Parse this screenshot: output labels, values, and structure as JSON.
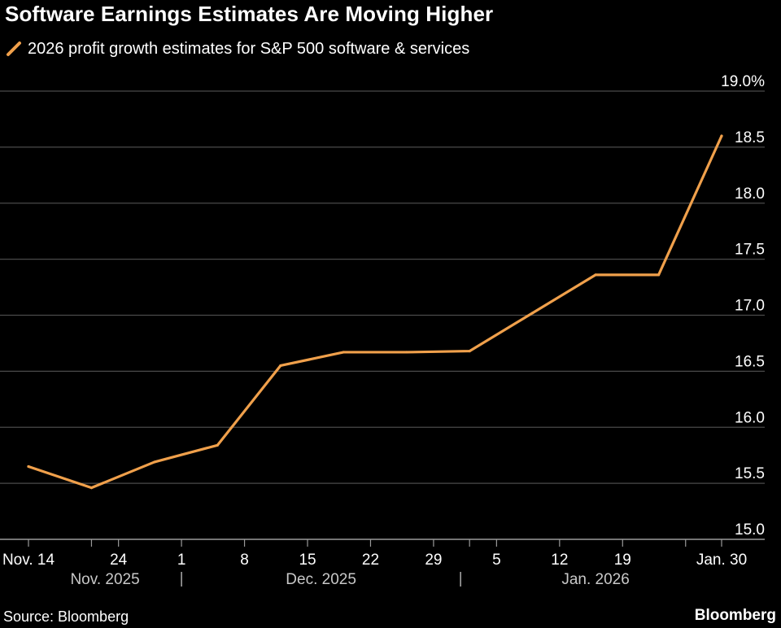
{
  "title": "Software Earnings Estimates Are Moving Higher",
  "source": "Source: Bloomberg",
  "brand": "Bloomberg",
  "colors": {
    "background": "#000000",
    "line": "#f0a04b",
    "grid": "#4a4a4a",
    "text": "#ffffff",
    "muted_text": "#c8c8c8"
  },
  "chart_data": {
    "type": "line",
    "title": "Software Earnings Estimates Are Moving Higher",
    "xlabel": "",
    "ylabel": "",
    "ylim": [
      15.0,
      19.0
    ],
    "y_ticks": [
      {
        "value": 15.0,
        "label": "15.0"
      },
      {
        "value": 15.5,
        "label": "15.5"
      },
      {
        "value": 16.0,
        "label": "16.0"
      },
      {
        "value": 16.5,
        "label": "16.5"
      },
      {
        "value": 17.0,
        "label": "17.0"
      },
      {
        "value": 17.5,
        "label": "17.5"
      },
      {
        "value": 18.0,
        "label": "18.0"
      },
      {
        "value": 18.5,
        "label": "18.5"
      },
      {
        "value": 19.0,
        "label": "19.0%"
      }
    ],
    "y_axis_side": "right",
    "grid": true,
    "x_domain_days": [
      0,
      77
    ],
    "x_ticks": [
      {
        "day": 0,
        "label": "Nov. 14"
      },
      {
        "day": 10,
        "label": "24"
      },
      {
        "day": 17,
        "label": "1"
      },
      {
        "day": 24,
        "label": "8"
      },
      {
        "day": 31,
        "label": "15"
      },
      {
        "day": 38,
        "label": "22"
      },
      {
        "day": 45,
        "label": "29"
      },
      {
        "day": 52,
        "label": "5"
      },
      {
        "day": 59,
        "label": "12"
      },
      {
        "day": 66,
        "label": "19"
      },
      {
        "day": 77,
        "label": "Jan. 30"
      }
    ],
    "minor_ticks_days": [
      7,
      49,
      73
    ],
    "month_labels": [
      {
        "label": "Nov. 2025",
        "day": 8.5
      },
      {
        "label": "Dec. 2025",
        "day": 32.5
      },
      {
        "label": "Jan. 2026",
        "day": 63
      }
    ],
    "month_separators_days": [
      17,
      48
    ],
    "series": [
      {
        "name": "2026 profit growth estimates for S&P 500 software & services",
        "x": [
          0,
          7,
          14,
          21,
          28,
          35,
          42,
          49,
          56,
          63,
          70,
          77
        ],
        "values": [
          15.65,
          15.46,
          15.69,
          15.84,
          16.55,
          16.67,
          16.67,
          16.68,
          17.02,
          17.36,
          17.36,
          18.6
        ]
      }
    ],
    "legend_position": "top-left"
  }
}
